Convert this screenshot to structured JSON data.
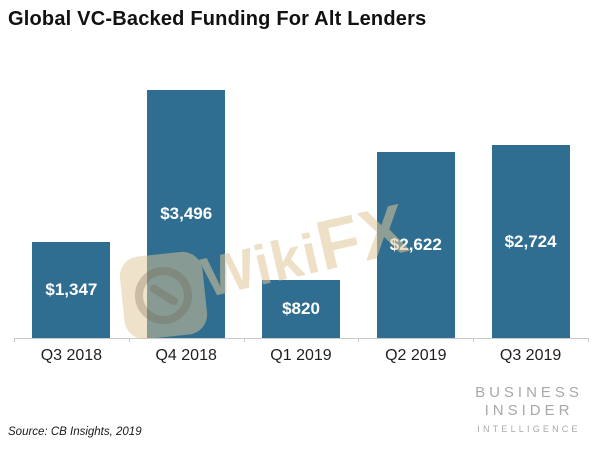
{
  "chart_data": {
    "type": "bar",
    "title": "Global VC-Backed Funding For Alt Lenders",
    "categories": [
      "Q3 2018",
      "Q4 2018",
      "Q1 2019",
      "Q2 2019",
      "Q3 2019"
    ],
    "values": [
      1347,
      3496,
      820,
      2622,
      2724
    ],
    "value_labels": [
      "$1,347",
      "$3,496",
      "$820",
      "$2,622",
      "$2,724"
    ],
    "ylim": [
      0,
      3550
    ],
    "xlabel": "",
    "ylabel": "",
    "grid": false,
    "legend": false,
    "bar_color": "#2f6e90",
    "value_label_color": "#ffffff",
    "value_label_position": "inside-center",
    "axis_color": "#c9c9c9",
    "category_label_color": "#1f1f1f"
  },
  "watermark": {
    "text_part1": "Wiki",
    "text_part2": "FX",
    "logo": "wikifx-aperture-logo",
    "color": "#dfc698"
  },
  "source": {
    "text": "Source: CB Insights, 2019"
  },
  "branding": {
    "line1": "BUSINESS",
    "line2": "INSIDER",
    "line3": "INTELLIGENCE",
    "color": "#a9a9a9"
  }
}
